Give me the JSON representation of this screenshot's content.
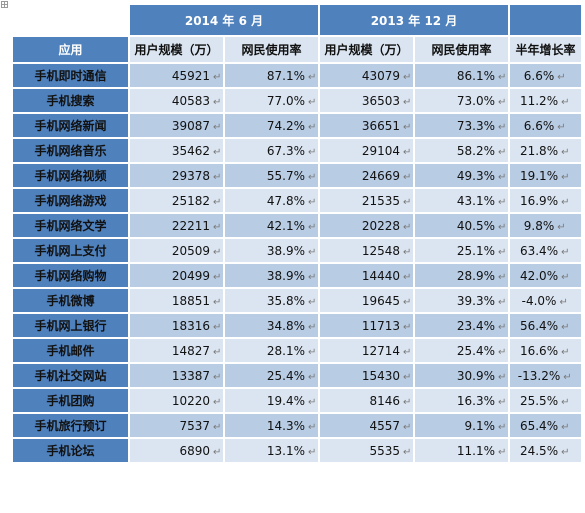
{
  "table": {
    "period_headers": [
      "2014 年 6 月",
      "2013 年 12 月"
    ],
    "column_headers": {
      "app": "应用",
      "users_2014": "用户规模（万）",
      "rate_2014": "网民使用率",
      "users_2013": "用户规模（万）",
      "rate_2013": "网民使用率",
      "growth": "半年增长率"
    },
    "return_mark": "↵",
    "rows": [
      {
        "app": "手机即时通信",
        "users_2014": "45921",
        "rate_2014": "87.1%",
        "users_2013": "43079",
        "rate_2013": "86.1%",
        "growth": "6.6%"
      },
      {
        "app": "手机搜索",
        "users_2014": "40583",
        "rate_2014": "77.0%",
        "users_2013": "36503",
        "rate_2013": "73.0%",
        "growth": "11.2%"
      },
      {
        "app": "手机网络新闻",
        "users_2014": "39087",
        "rate_2014": "74.2%",
        "users_2013": "36651",
        "rate_2013": "73.3%",
        "growth": "6.6%"
      },
      {
        "app": "手机网络音乐",
        "users_2014": "35462",
        "rate_2014": "67.3%",
        "users_2013": "29104",
        "rate_2013": "58.2%",
        "growth": "21.8%"
      },
      {
        "app": "手机网络视频",
        "users_2014": "29378",
        "rate_2014": "55.7%",
        "users_2013": "24669",
        "rate_2013": "49.3%",
        "growth": "19.1%"
      },
      {
        "app": "手机网络游戏",
        "users_2014": "25182",
        "rate_2014": "47.8%",
        "users_2013": "21535",
        "rate_2013": "43.1%",
        "growth": "16.9%"
      },
      {
        "app": "手机网络文学",
        "users_2014": "22211",
        "rate_2014": "42.1%",
        "users_2013": "20228",
        "rate_2013": "40.5%",
        "growth": "9.8%"
      },
      {
        "app": "手机网上支付",
        "users_2014": "20509",
        "rate_2014": "38.9%",
        "users_2013": "12548",
        "rate_2013": "25.1%",
        "growth": "63.4%"
      },
      {
        "app": "手机网络购物",
        "users_2014": "20499",
        "rate_2014": "38.9%",
        "users_2013": "14440",
        "rate_2013": "28.9%",
        "growth": "42.0%"
      },
      {
        "app": "手机微博",
        "users_2014": "18851",
        "rate_2014": "35.8%",
        "users_2013": "19645",
        "rate_2013": "39.3%",
        "growth": "-4.0%"
      },
      {
        "app": "手机网上银行",
        "users_2014": "18316",
        "rate_2014": "34.8%",
        "users_2013": "11713",
        "rate_2013": "23.4%",
        "growth": "56.4%"
      },
      {
        "app": "手机邮件",
        "users_2014": "14827",
        "rate_2014": "28.1%",
        "users_2013": "12714",
        "rate_2013": "25.4%",
        "growth": "16.6%"
      },
      {
        "app": "手机社交网站",
        "users_2014": "13387",
        "rate_2014": "25.4%",
        "users_2013": "15430",
        "rate_2013": "30.9%",
        "growth": "-13.2%"
      },
      {
        "app": "手机团购",
        "users_2014": "10220",
        "rate_2014": "19.4%",
        "users_2013": "8146",
        "rate_2013": "16.3%",
        "growth": "25.5%"
      },
      {
        "app": "手机旅行预订",
        "users_2014": "7537",
        "rate_2014": "14.3%",
        "users_2013": "4557",
        "rate_2013": "9.1%",
        "growth": "65.4%"
      },
      {
        "app": "手机论坛",
        "users_2014": "6890",
        "rate_2014": "13.1%",
        "users_2013": "5535",
        "rate_2013": "11.1%",
        "growth": "24.5%"
      }
    ]
  }
}
